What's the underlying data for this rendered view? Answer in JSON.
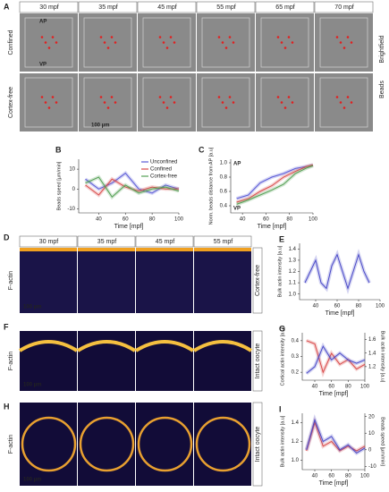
{
  "panels": {
    "A": {
      "label": "A",
      "times": [
        "30 mpf",
        "35 mpf",
        "45 mpf",
        "55 mpf",
        "65 mpf",
        "70 mpf"
      ],
      "rows": [
        "Confined",
        "Cortex-free"
      ],
      "right": [
        "Brightfield",
        "Beads"
      ],
      "annotations": [
        "AP",
        "VP",
        "100 µm"
      ]
    },
    "D": {
      "label": "D",
      "times": [
        "30 mpf",
        "35 mpf",
        "45 mpf",
        "55 mpf"
      ],
      "left": "F-actin",
      "right": "Cortex-free",
      "annotations": [
        "100 µm"
      ]
    },
    "F": {
      "label": "F",
      "left": "F-actin",
      "right": "Intact oocyte",
      "annotations": [
        "100 µm"
      ]
    },
    "H": {
      "label": "H",
      "left": "F-actin",
      "right": "Intact oocyte",
      "annotations": [
        "100 µm"
      ]
    }
  },
  "chart_data": [
    {
      "type": "line",
      "panel": "B",
      "ylabel": "Beads speed [µm/min]",
      "xlabel": "Time [mpf]",
      "legend": "upper right",
      "x": [
        30,
        40,
        50,
        60,
        70,
        80,
        90,
        100
      ],
      "xlim": [
        25,
        100
      ],
      "xticks": [
        40,
        60,
        80,
        100
      ],
      "ylim": [
        -12,
        15
      ],
      "yticks": [
        -10,
        0,
        10
      ],
      "series": [
        {
          "name": "Unconfined",
          "color": "#5b5bd6",
          "values": [
            5,
            0,
            3,
            8,
            0,
            -2,
            2,
            0
          ]
        },
        {
          "name": "Confined",
          "color": "#d94a4a",
          "values": [
            2,
            -3,
            5,
            1,
            -1,
            1,
            0,
            0
          ]
        },
        {
          "name": "Cortex-free",
          "color": "#55a055",
          "values": [
            3,
            6,
            -4,
            2,
            -2,
            0,
            1,
            -1
          ]
        }
      ]
    },
    {
      "type": "line",
      "panel": "C",
      "ylabel": "Norm. beads distance from AP [a.u]",
      "xlabel": "Time [mpf]",
      "annotations": [
        "AP",
        "VP"
      ],
      "x": [
        35,
        45,
        55,
        65,
        75,
        85,
        95,
        100
      ],
      "xlim": [
        30,
        100
      ],
      "xticks": [
        40,
        60,
        80,
        100
      ],
      "ylim": [
        0.3,
        1.05
      ],
      "yticks": [
        0.4,
        0.6,
        0.8,
        {
          "value": 1,
          "label": "1.0"
        }
      ],
      "series": [
        {
          "color": "#5b5bd6",
          "values": [
            0.5,
            0.55,
            0.72,
            0.8,
            0.85,
            0.92,
            0.95,
            0.97
          ]
        },
        {
          "color": "#d94a4a",
          "values": [
            0.45,
            0.5,
            0.6,
            0.68,
            0.8,
            0.88,
            0.95,
            0.97
          ]
        },
        {
          "color": "#55a055",
          "values": [
            0.42,
            0.48,
            0.55,
            0.62,
            0.7,
            0.85,
            0.93,
            0.96
          ]
        }
      ]
    },
    {
      "type": "line",
      "panel": "E",
      "ylabel": "Bulk actin intensity [a.u]",
      "xlabel": "Time [mpf]",
      "x": [
        30,
        35,
        40,
        45,
        50,
        55,
        60,
        65,
        70,
        75,
        80,
        85,
        90
      ],
      "xlim": [
        25,
        100
      ],
      "xticks": [
        40,
        60,
        80,
        100
      ],
      "ylim": [
        0.95,
        1.45
      ],
      "yticks": [
        {
          "value": 1,
          "label": "1.0"
        },
        1.1,
        1.2,
        1.3,
        1.4
      ],
      "series": [
        {
          "color": "#4a4ac8",
          "values": [
            1.1,
            1.2,
            1.3,
            1.1,
            1.05,
            1.25,
            1.35,
            1.2,
            1.05,
            1.2,
            1.35,
            1.2,
            1.1
          ]
        }
      ]
    },
    {
      "type": "line",
      "panel": "G",
      "ylabel": "Cortical actin intensity [a.u]",
      "y2label": "Bulk actin intensity [a.u]",
      "xlabel": "Time [mpf]",
      "x": [
        30,
        40,
        50,
        60,
        70,
        80,
        90,
        100
      ],
      "xlim": [
        25,
        100
      ],
      "xticks": [
        40,
        60,
        80,
        100
      ],
      "ylim": [
        0.15,
        0.45
      ],
      "yticks": [
        0.2,
        0.3,
        0.4
      ],
      "y2lim": [
        1,
        1.7
      ],
      "y2ticks": [
        1.2,
        1.4,
        1.6
      ],
      "series": [
        {
          "color": "#d94a4a",
          "values": [
            0.4,
            0.38,
            0.2,
            0.32,
            0.25,
            0.28,
            0.22,
            0.25
          ]
        },
        {
          "color": "#4a4ac8",
          "axis": "y2",
          "values": [
            1.1,
            1.2,
            1.5,
            1.3,
            1.4,
            1.3,
            1.25,
            1.3
          ]
        }
      ]
    },
    {
      "type": "line",
      "panel": "I",
      "ylabel": "Bulk actin intensity [a.u]",
      "y2label": "Beads speed [µm/min]",
      "xlabel": "Time [mpf]",
      "x": [
        30,
        40,
        50,
        60,
        70,
        80,
        90,
        100
      ],
      "xlim": [
        25,
        100
      ],
      "xticks": [
        40,
        60,
        80,
        100
      ],
      "ylim": [
        0.9,
        1.5
      ],
      "yticks": [
        {
          "value": 1,
          "label": "1.0"
        },
        1.2,
        1.4
      ],
      "y2lim": [
        -12,
        22
      ],
      "y2ticks": [
        -10,
        0,
        10,
        20
      ],
      "series": [
        {
          "color": "#d94a4a",
          "values": [
            1.1,
            1.4,
            1.15,
            1.2,
            1.1,
            1.15,
            1.1,
            1.15
          ]
        },
        {
          "color": "#4a4ac8",
          "axis": "y2",
          "values": [
            0,
            18,
            5,
            8,
            0,
            3,
            -2,
            1
          ]
        }
      ]
    }
  ]
}
